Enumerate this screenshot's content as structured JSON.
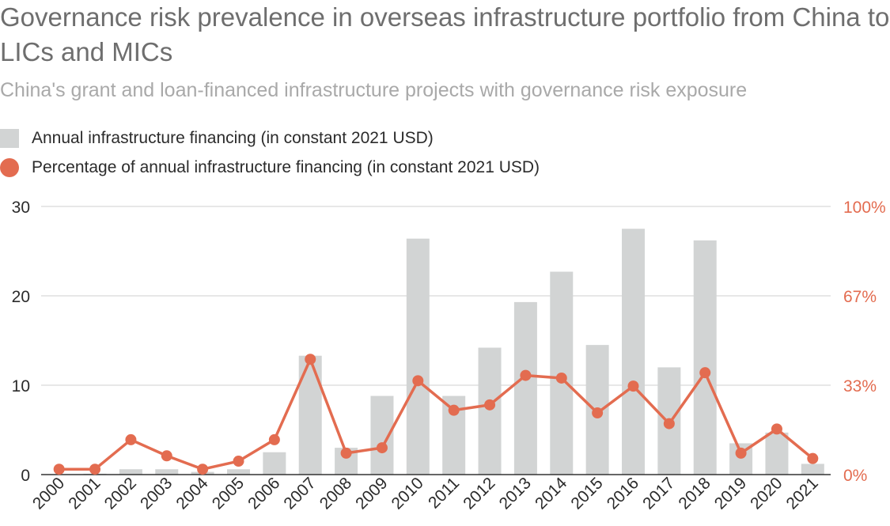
{
  "title": "Governance risk prevalence in overseas infrastructure portfolio from China to LICs and MICs",
  "subtitle": "China's grant and loan-financed infrastructure projects with governance risk exposure",
  "legend": {
    "bar_label": "Annual infrastructure financing (in constant 2021 USD)",
    "line_label": "Percentage of annual infrastructure financing (in constant 2021 USD)"
  },
  "colors": {
    "bar": "#d2d4d4",
    "line": "#e36c50",
    "grid": "#cfcfcf",
    "axis": "#333333"
  },
  "chart_data": {
    "type": "bar",
    "categories": [
      "2000",
      "2001",
      "2002",
      "2003",
      "2004",
      "2005",
      "2006",
      "2007",
      "2008",
      "2009",
      "2010",
      "2011",
      "2012",
      "2013",
      "2014",
      "2015",
      "2016",
      "2017",
      "2018",
      "2019",
      "2020",
      "2021"
    ],
    "series": [
      {
        "name": "Annual infrastructure financing (in constant 2021 USD)",
        "type": "bar",
        "axis": "left",
        "values": [
          0,
          0.1,
          0.6,
          0.6,
          0.3,
          0.6,
          2.5,
          13.3,
          3.0,
          8.8,
          26.4,
          8.8,
          14.2,
          19.3,
          22.7,
          14.5,
          27.5,
          12.0,
          26.2,
          3.5,
          4.7,
          1.2
        ]
      },
      {
        "name": "Percentage of annual infrastructure financing (in constant 2021 USD)",
        "type": "line",
        "axis": "right",
        "values": [
          2,
          2,
          13,
          7,
          2,
          5,
          13,
          43,
          8,
          10,
          35,
          24,
          26,
          37,
          36,
          23,
          33,
          19,
          38,
          8,
          17,
          6
        ]
      }
    ],
    "left_axis": {
      "ylim": [
        0,
        30
      ],
      "ticks": [
        "0",
        "10",
        "20",
        "30"
      ],
      "tick_values": [
        0,
        10,
        20,
        30
      ]
    },
    "right_axis": {
      "ylim": [
        0,
        100
      ],
      "ticks": [
        "0%",
        "33%",
        "67%",
        "100%"
      ],
      "tick_values": [
        0,
        33.33,
        66.67,
        100
      ]
    },
    "grid": true,
    "legend_position": "top-left"
  }
}
